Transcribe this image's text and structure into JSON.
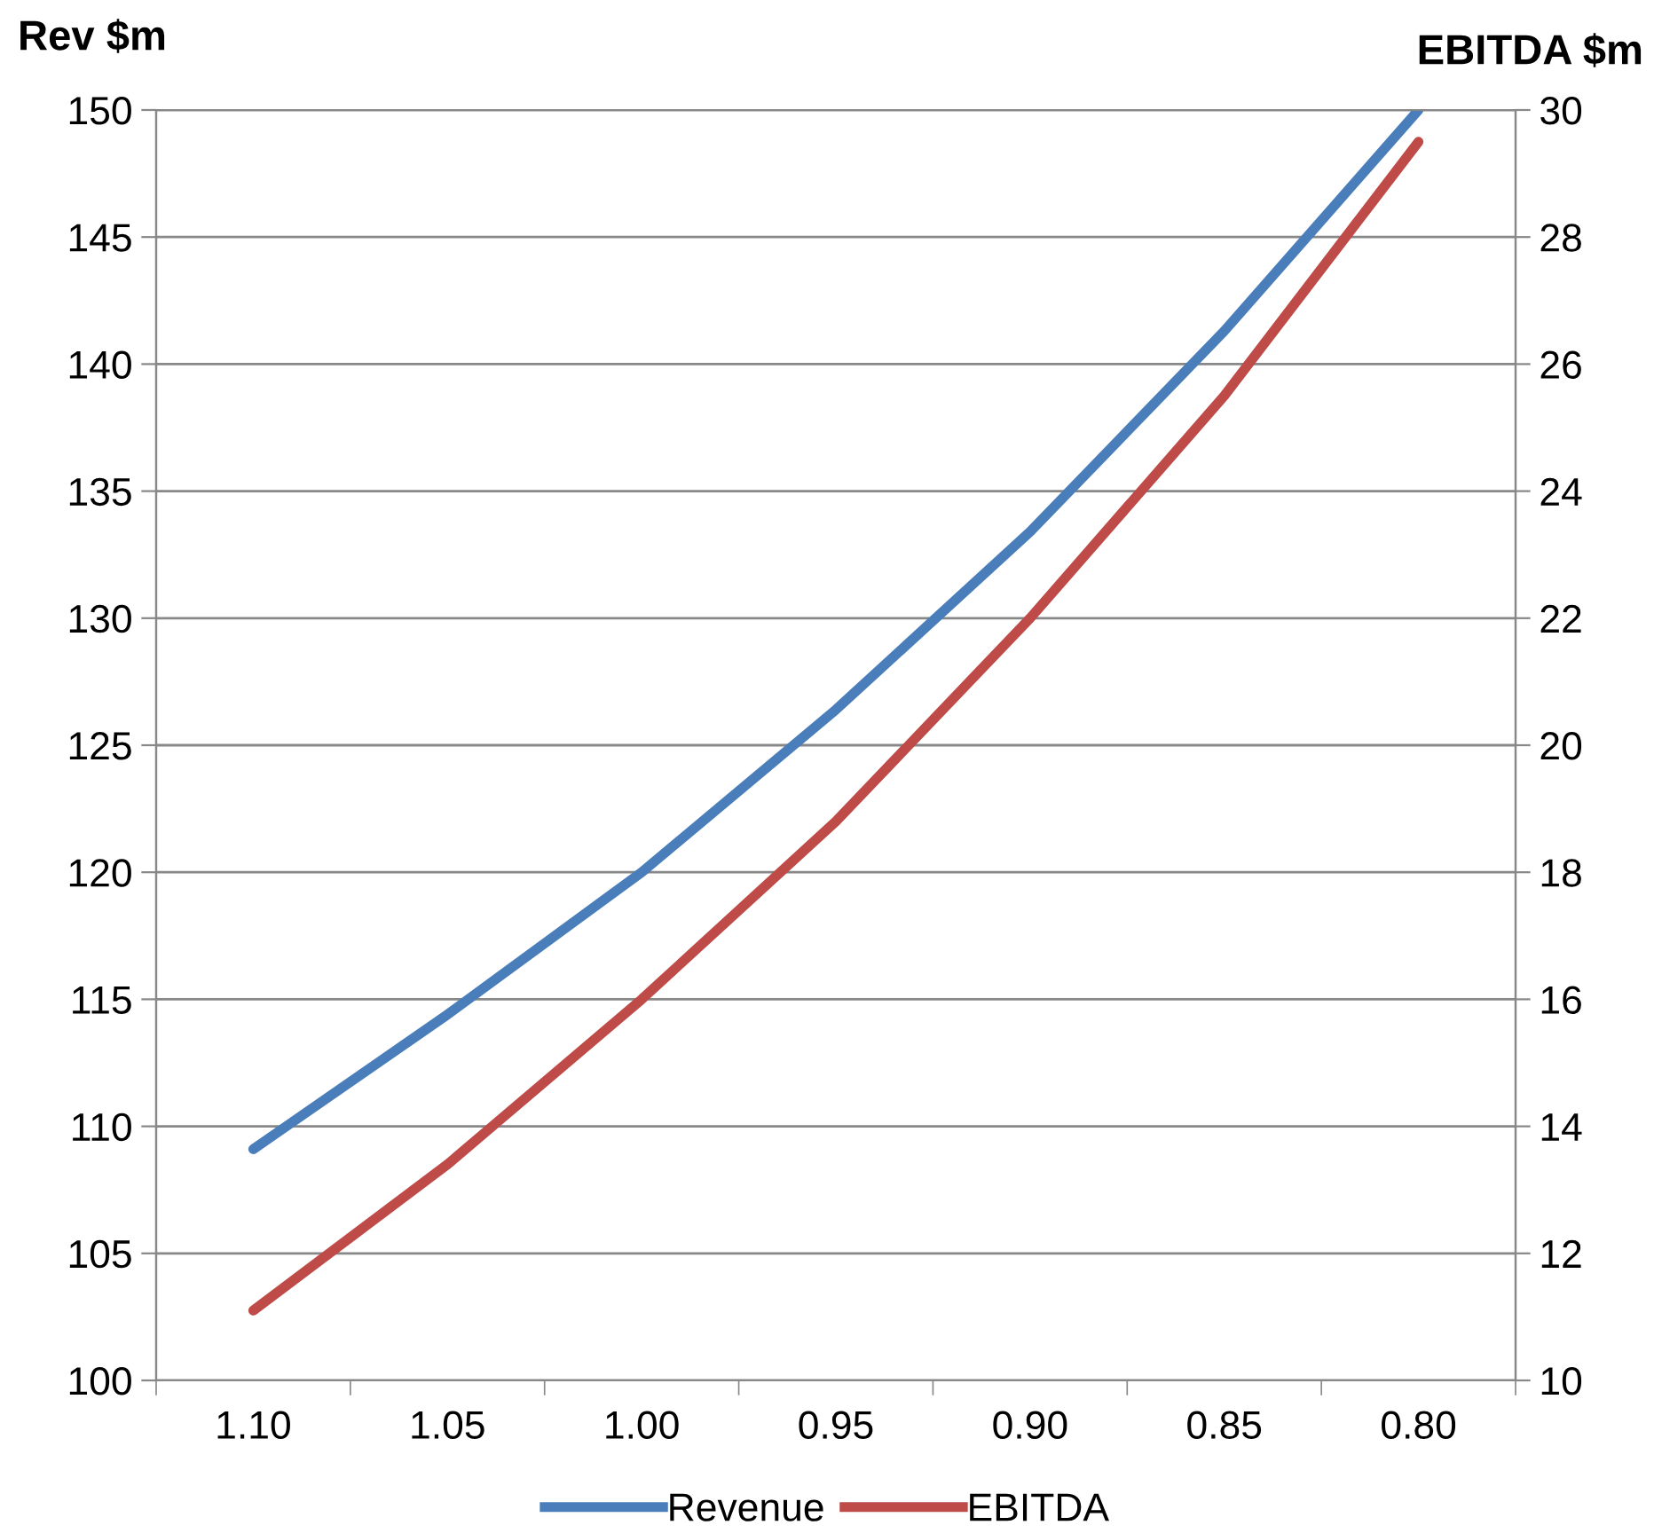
{
  "chart_data": {
    "type": "line",
    "categories": [
      "1.10",
      "1.05",
      "1.00",
      "0.95",
      "0.90",
      "0.85",
      "0.80"
    ],
    "series": [
      {
        "name": "Revenue",
        "color": "#4a7ebb",
        "values": [
          109.1,
          114.4,
          120.0,
          126.4,
          133.4,
          141.3,
          150.0
        ]
      },
      {
        "name": "EBITDA",
        "color": "#be4b48",
        "axis": "y2",
        "values": [
          11.1,
          13.4,
          16.0,
          18.8,
          22.0,
          25.5,
          29.5
        ]
      }
    ],
    "ylabel": "Rev $m",
    "y2label": "EBITDA $m",
    "ylim": [
      100,
      150
    ],
    "yticks": [
      100,
      105,
      110,
      115,
      120,
      125,
      130,
      135,
      140,
      145,
      150
    ],
    "y2lim": [
      10,
      30
    ],
    "y2ticks": [
      10,
      12,
      14,
      16,
      18,
      20,
      22,
      24,
      26,
      28,
      30
    ],
    "grid": "y",
    "legend": "bottom",
    "marker": "none",
    "line_style": "solid"
  }
}
